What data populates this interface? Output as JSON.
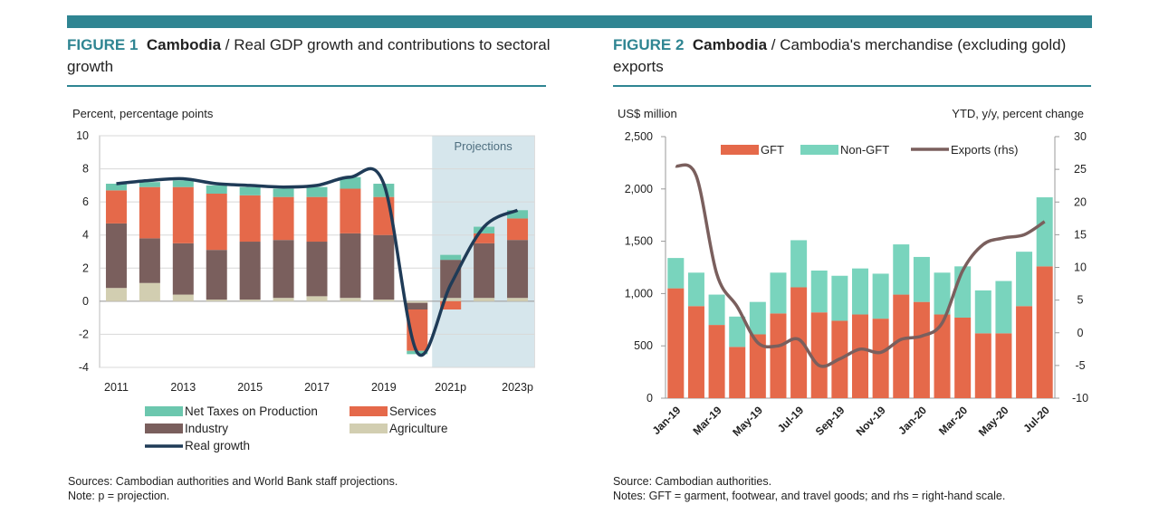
{
  "figure1": {
    "label": "FIGURE 1",
    "country": "Cambodia",
    "title_rest": " / Real GDP growth and contributions to sectoral growth",
    "unit": "Percent, percentage points",
    "projection_label": "Projections",
    "source": "Sources: Cambodian authorities and World Bank staff projections.",
    "note": "Note: p = projection."
  },
  "figure2": {
    "label": "FIGURE 2",
    "country": "Cambodia",
    "title_rest": " / Cambodia's merchandise (excluding gold) exports",
    "unit_left": "US$ million",
    "unit_right": "YTD, y/y, percent change",
    "source": "Source: Cambodian authorities.",
    "note": "Notes: GFT = garment, footwear, and travel goods; and rhs = right-hand scale."
  },
  "colors": {
    "accent": "#2f8592",
    "net_taxes": "#6cc7ae",
    "services": "#e5694a",
    "industry": "#7a5f5d",
    "agriculture": "#d2ceb1",
    "real_growth": "#1f3b57",
    "non_gft": "#79d4bd",
    "gft": "#e5694a",
    "exports_line": "#7a5f5d",
    "projection_shade": "#d6e6ec"
  },
  "chart_data": [
    {
      "type": "bar",
      "stacked": true,
      "categories": [
        "2011",
        "2012",
        "2013",
        "2014",
        "2015",
        "2016",
        "2017",
        "2018",
        "2019",
        "2020",
        "2021p",
        "2022",
        "2023p"
      ],
      "tick_labels": [
        "2011",
        "2013",
        "2015",
        "2017",
        "2019",
        "2021p",
        "2023p"
      ],
      "ylim": [
        -4,
        10
      ],
      "yticks": [
        -4,
        -2,
        0,
        2,
        4,
        6,
        8,
        10
      ],
      "series": [
        {
          "name": "Agriculture",
          "values": [
            0.8,
            1.1,
            0.4,
            0.1,
            0.1,
            0.2,
            0.3,
            0.2,
            0.1,
            -0.1,
            0.2,
            0.2,
            0.2
          ]
        },
        {
          "name": "Industry",
          "values": [
            3.9,
            2.7,
            3.1,
            3.0,
            3.5,
            3.5,
            3.3,
            3.9,
            3.9,
            -0.4,
            2.3,
            3.3,
            3.5
          ]
        },
        {
          "name": "Services",
          "values": [
            2.0,
            3.1,
            3.4,
            3.4,
            2.8,
            2.6,
            2.7,
            2.7,
            2.3,
            -2.5,
            -0.5,
            0.6,
            1.3
          ]
        },
        {
          "name": "Net Taxes on Production",
          "values": [
            0.4,
            0.3,
            0.4,
            0.5,
            0.5,
            0.5,
            0.6,
            0.7,
            0.8,
            -0.2,
            0.3,
            0.4,
            0.5
          ]
        }
      ],
      "line": {
        "name": "Real growth",
        "values": [
          7.1,
          7.3,
          7.4,
          7.1,
          7.0,
          6.9,
          7.0,
          7.5,
          7.1,
          -3.1,
          1.0,
          4.5,
          5.5
        ]
      },
      "projection_start": "2021p",
      "legend": [
        "Net Taxes on Production",
        "Services",
        "Industry",
        "Agriculture",
        "Real growth"
      ]
    },
    {
      "type": "bar",
      "stacked": true,
      "categories": [
        "Jan-19",
        "Feb-19",
        "Mar-19",
        "Apr-19",
        "May-19",
        "Jun-19",
        "Jul-19",
        "Aug-19",
        "Sep-19",
        "Oct-19",
        "Nov-19",
        "Dec-19",
        "Jan-20",
        "Feb-20",
        "Mar-20",
        "Apr-20",
        "May-20",
        "Jun-20",
        "Jul-20"
      ],
      "tick_labels": [
        "Jan-19",
        "Mar-19",
        "May-19",
        "Jul-19",
        "Sep-19",
        "Nov-19",
        "Jan-20",
        "Mar-20",
        "May-20",
        "Jul-20"
      ],
      "ylim": [
        0,
        2500
      ],
      "yticks": [
        0,
        500,
        1000,
        1500,
        2000,
        2500
      ],
      "y2lim": [
        -10,
        30
      ],
      "y2ticks": [
        -10,
        -5,
        0,
        5,
        10,
        15,
        20,
        25,
        30
      ],
      "series": [
        {
          "name": "GFT",
          "values": [
            1050,
            880,
            700,
            490,
            610,
            810,
            1060,
            820,
            740,
            800,
            760,
            990,
            920,
            800,
            770,
            620,
            620,
            880,
            1260
          ]
        },
        {
          "name": "Non-GFT",
          "values": [
            290,
            320,
            290,
            290,
            310,
            390,
            450,
            400,
            430,
            440,
            430,
            480,
            430,
            400,
            490,
            410,
            500,
            520,
            660
          ]
        }
      ],
      "line": {
        "name": "Exports (rhs)",
        "axis": "right",
        "values": [
          25.5,
          24.0,
          9.0,
          4.0,
          -1.5,
          -2.0,
          -1.0,
          -5.0,
          -4.0,
          -2.5,
          -3.0,
          -1.0,
          -0.5,
          1.5,
          9.5,
          13.5,
          14.5,
          15.0,
          17.0
        ]
      },
      "legend": [
        "GFT",
        "Non-GFT",
        "Exports (rhs)"
      ]
    }
  ]
}
